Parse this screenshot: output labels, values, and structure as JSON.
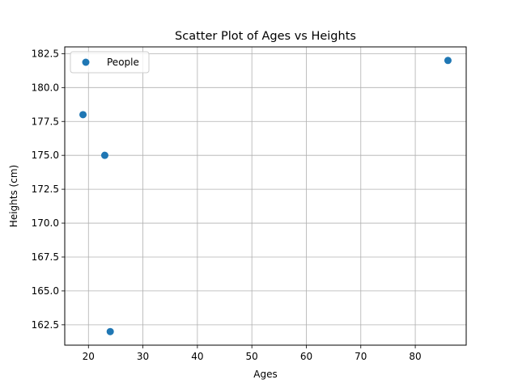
{
  "chart_data": {
    "type": "scatter",
    "title": "Scatter Plot of Ages vs Heights",
    "xlabel": "Ages",
    "ylabel": "Heights (cm)",
    "xlim": [
      15.65,
      89.35
    ],
    "ylim": [
      161.0,
      183.0
    ],
    "x_ticks": [
      20,
      30,
      40,
      50,
      60,
      70,
      80
    ],
    "y_ticks": [
      162.5,
      165.0,
      167.5,
      170.0,
      172.5,
      175.0,
      177.5,
      180.0,
      182.5
    ],
    "grid": true,
    "legend_position": "top-left",
    "series": [
      {
        "name": "People",
        "color": "#1f77b4",
        "points": [
          {
            "x": 19,
            "y": 178
          },
          {
            "x": 23,
            "y": 175
          },
          {
            "x": 24,
            "y": 162
          },
          {
            "x": 86,
            "y": 182
          }
        ]
      }
    ]
  }
}
